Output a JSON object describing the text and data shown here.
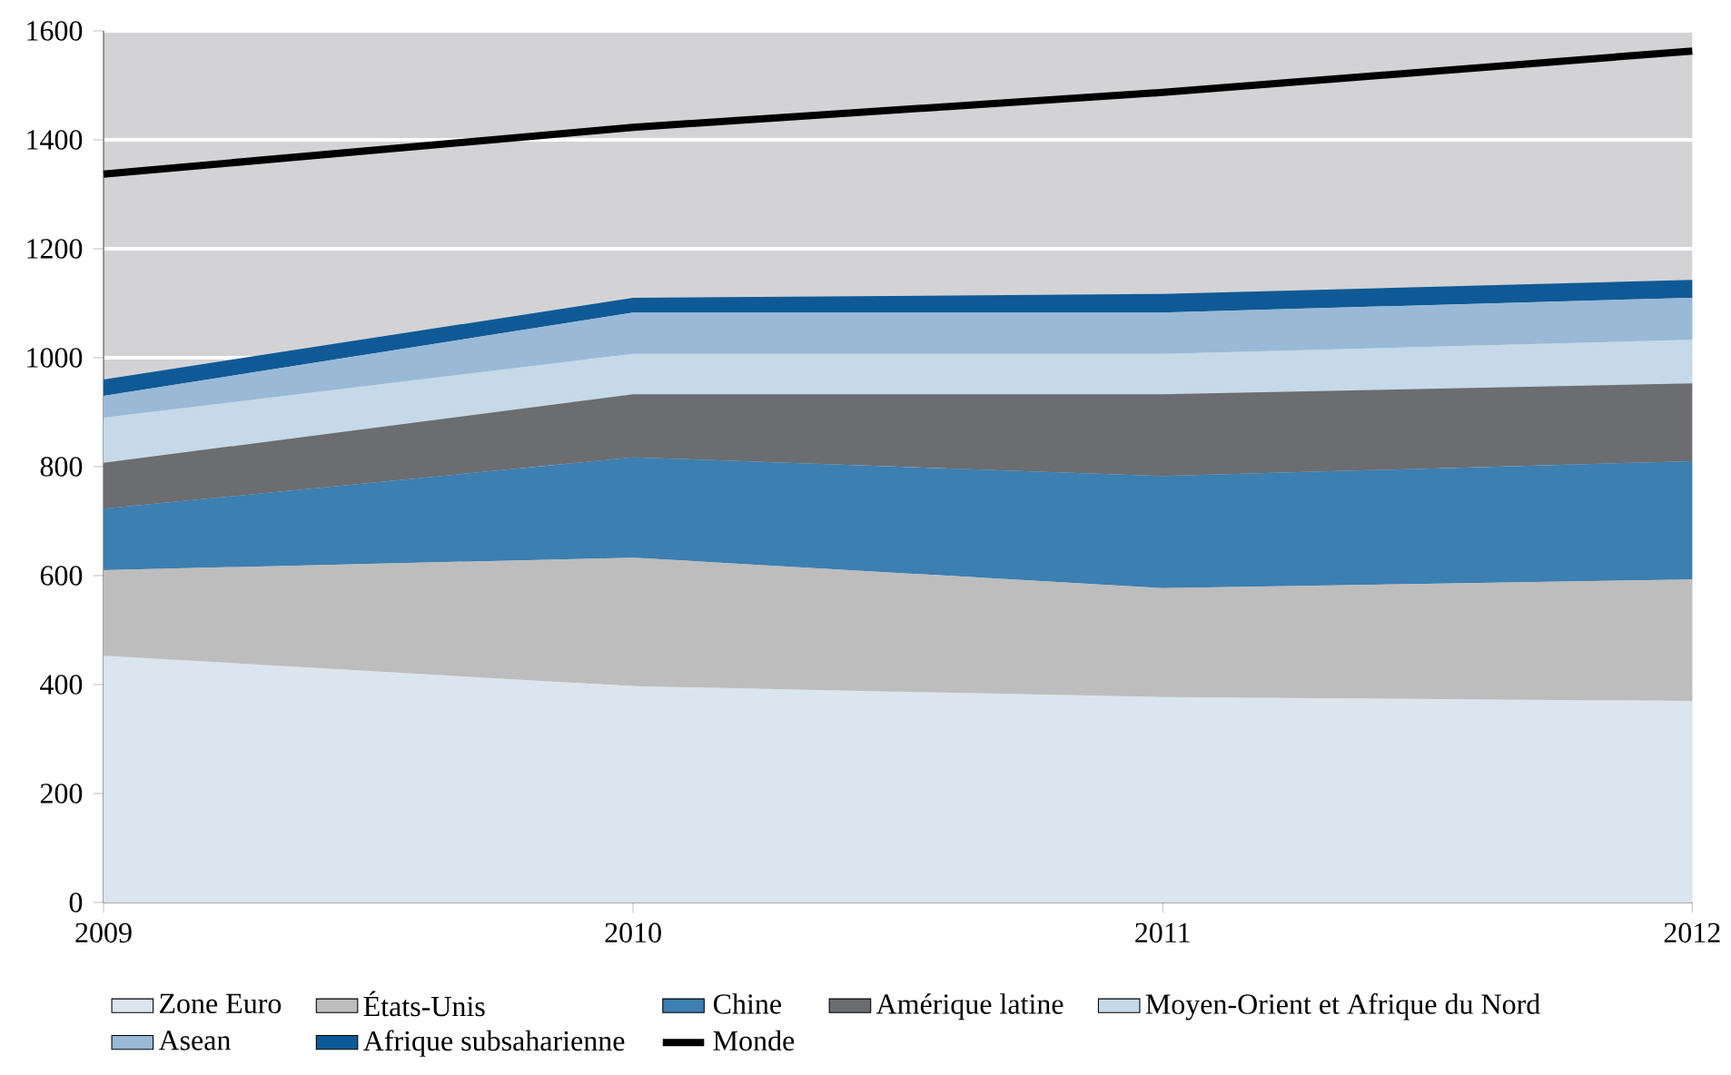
{
  "chart_data": {
    "type": "area",
    "stacked": true,
    "x": [
      2009,
      2010,
      2011,
      2012
    ],
    "xlim": [
      2009,
      2012
    ],
    "xticks": [
      2009,
      2010,
      2011,
      2012
    ],
    "ylim": [
      0,
      1600
    ],
    "yticks": [
      0,
      200,
      400,
      600,
      800,
      1000,
      1200,
      1400,
      1600
    ],
    "grid": "y",
    "legend": "bottom",
    "series": [
      {
        "name": "Zone Euro",
        "color": "#dbe5ef",
        "values": [
          453,
          397,
          377,
          370
        ]
      },
      {
        "name": "États-Unis",
        "color": "#bdbdbd",
        "values": [
          157,
          236,
          200,
          223
        ]
      },
      {
        "name": "Chine",
        "color": "#3c7fb1",
        "values": [
          113,
          184,
          206,
          217
        ]
      },
      {
        "name": "Amérique latine",
        "color": "#6b6d70",
        "values": [
          84,
          116,
          150,
          143
        ]
      },
      {
        "name": "Moyen-Orient et Afrique du Nord",
        "color": "#c5d9e8",
        "values": [
          83,
          74,
          74,
          80
        ]
      },
      {
        "name": "Asean",
        "color": "#99b9d7",
        "values": [
          40,
          76,
          76,
          77
        ]
      },
      {
        "name": "Afrique subsaharienne",
        "color": "#0f5a96",
        "values": [
          30,
          27,
          34,
          33
        ]
      },
      {
        "name": "Monde",
        "type": "line",
        "color": "#000000",
        "values": [
          1337,
          1423,
          1487,
          1563
        ]
      }
    ]
  }
}
